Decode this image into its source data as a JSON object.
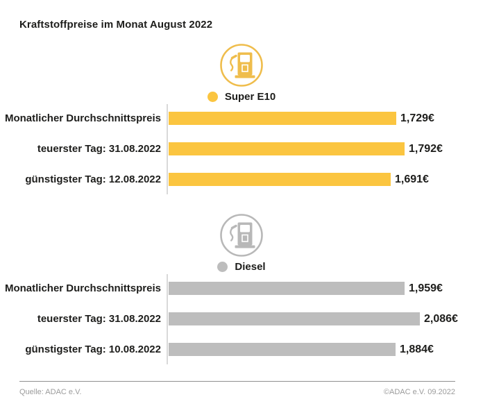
{
  "page": {
    "title": "Kraftstoffpreise im Monat August 2022"
  },
  "footer": {
    "source": "Quelle: ADAC e.V.",
    "copyright": "©ADAC e.V. 09.2022"
  },
  "colors": {
    "super_e10_bar": "#FBC540",
    "super_e10_icon": "#EFBD4C",
    "diesel_bar": "#BDBDBD",
    "diesel_icon": "#B8B8B8",
    "text": "#1D1D1B",
    "axis_line": "#D9D9D9",
    "footer_text": "#9B9B9B"
  },
  "chart_data": [
    {
      "type": "bar",
      "orientation": "horizontal",
      "title": "Super E10",
      "icon": "fuel-pump-icon",
      "color": "#FBC540",
      "icon_color": "#EFBD4C",
      "categories": [
        "Monatlicher Durchschnittspreis",
        "teuerster Tag: 31.08.2022",
        "günstigster Tag: 12.08.2022"
      ],
      "values": [
        1.729,
        1.792,
        1.691
      ],
      "value_labels": [
        "1,729€",
        "1,792€",
        "1,691€"
      ],
      "unit": "EUR/Liter",
      "xlim": [
        0,
        1.9
      ],
      "grid": false,
      "legend_position": "top"
    },
    {
      "type": "bar",
      "orientation": "horizontal",
      "title": "Diesel",
      "icon": "fuel-pump-icon",
      "color": "#BDBDBD",
      "icon_color": "#B8B8B8",
      "categories": [
        "Monatlicher Durchschnittspreis",
        "teuerster Tag: 31.08.2022",
        "günstigster Tag: 10.08.2022"
      ],
      "values": [
        1.959,
        2.086,
        1.884
      ],
      "value_labels": [
        "1,959€",
        "2,086€",
        "1,884€"
      ],
      "unit": "EUR/Liter",
      "xlim": [
        0,
        2.075
      ],
      "grid": false,
      "legend_position": "top"
    }
  ]
}
